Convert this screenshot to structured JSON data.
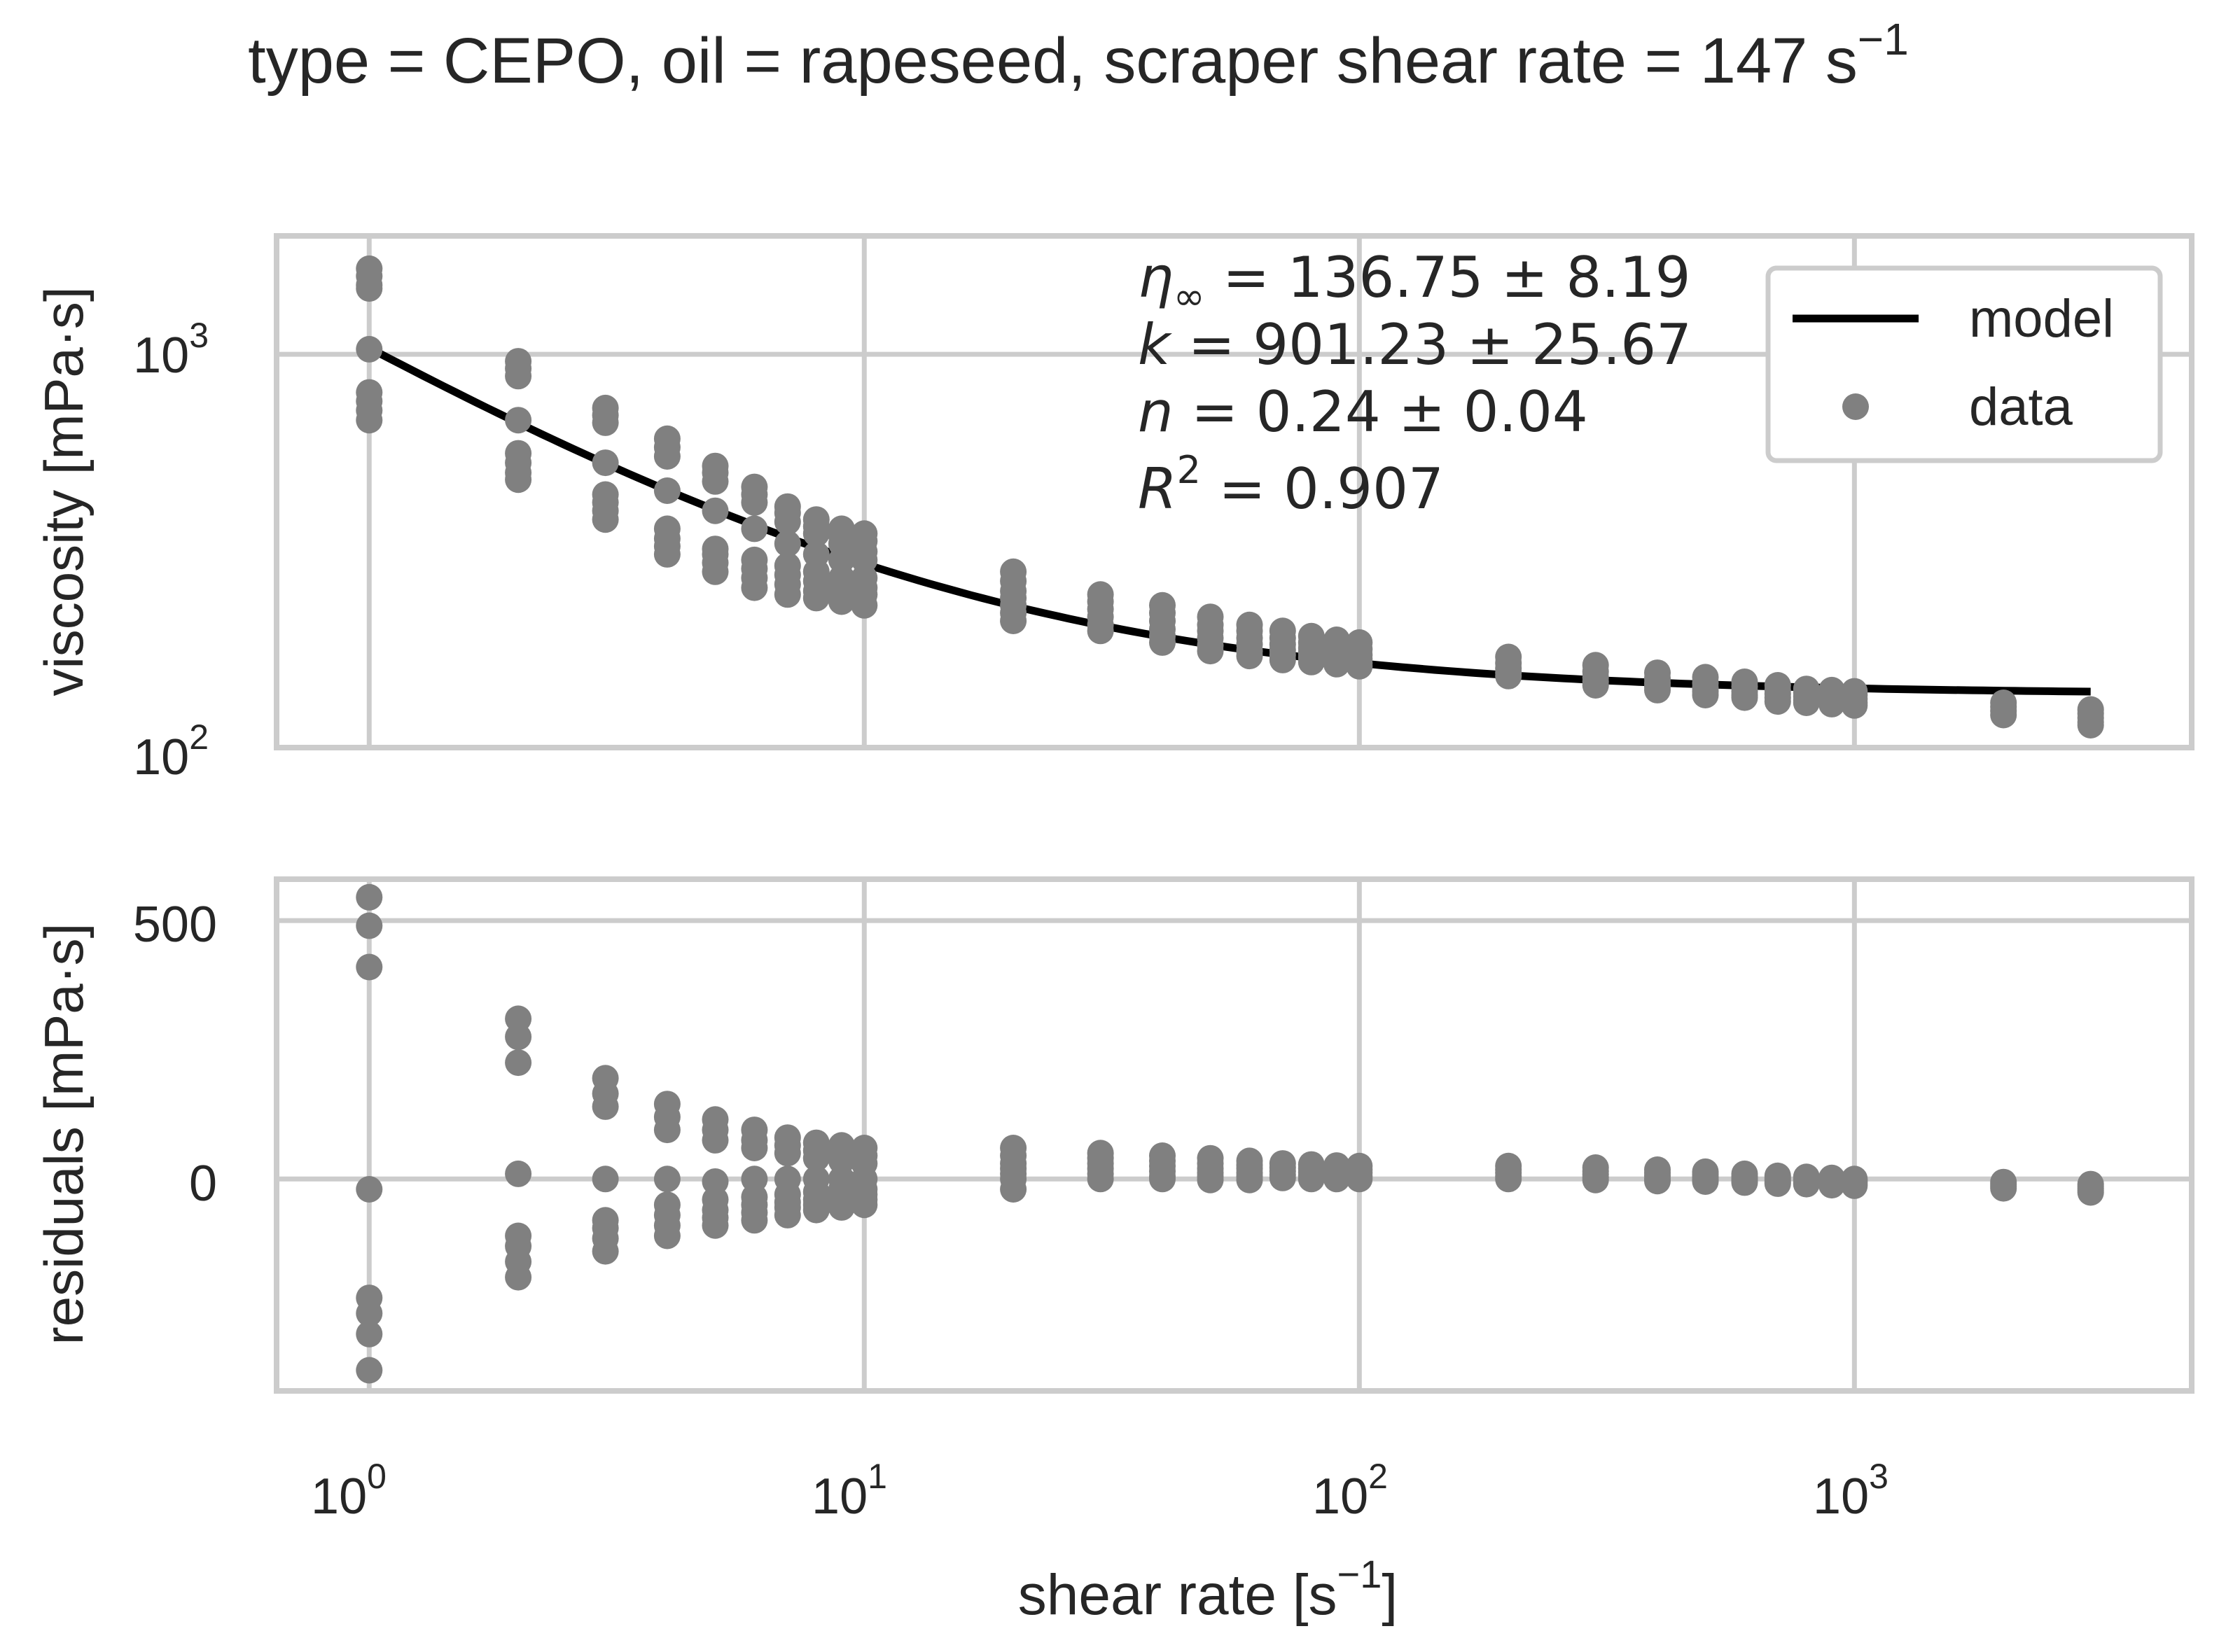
{
  "chart_data": {
    "type": "scatter",
    "title": {
      "main": "type = CEPO, oil = rapeseed, scraper shear rate = 147 s",
      "sup": "−1"
    },
    "colors": {
      "data": "#808080",
      "model": "#000000",
      "grid": "#cccccc",
      "frame": "#cccccc",
      "text": "#262626"
    },
    "xaxis": {
      "label": {
        "main": "shear rate [s",
        "sup": "−1",
        "tail": "]"
      },
      "scale": "log",
      "range": [
        0.65,
        4800
      ],
      "ticks": [
        {
          "value": 1,
          "base": "10",
          "exp": "0"
        },
        {
          "value": 10,
          "base": "10",
          "exp": "1"
        },
        {
          "value": 100,
          "base": "10",
          "exp": "2"
        },
        {
          "value": 1000,
          "base": "10",
          "exp": "3"
        }
      ]
    },
    "viscosity_panel": {
      "ylabel": "viscosity [mPa·s]",
      "yscale": "log",
      "ylim": [
        100,
        2000
      ],
      "yticks": [
        {
          "value": 100,
          "base": "10",
          "exp": "2"
        },
        {
          "value": 1000,
          "base": "10",
          "exp": "3"
        }
      ],
      "legend": {
        "position": "top-right",
        "model_label": "model",
        "data_label": "data"
      },
      "annotation": {
        "line1": {
          "lead": "η",
          "sub": "∞",
          "tail": " = 136.75 ± 8.19"
        },
        "line2": {
          "lead": "k",
          "tail": " = 901.23 ± 25.67"
        },
        "line3": {
          "lead": "n",
          "tail": " = 0.24 ± 0.04"
        },
        "line4": {
          "lead": "R",
          "sup": "2",
          "tail": " = 0.907"
        }
      },
      "model": {
        "eta_inf": 136.75,
        "k": 901.23,
        "n": 0.24,
        "x_range": [
          1,
          3000
        ]
      },
      "data": [
        {
          "x": 1,
          "y": [
            1650,
            1580,
            1500,
            1470,
            1030,
            800,
            760,
            720,
            680
          ]
        },
        {
          "x": 2,
          "y": [
            960,
            920,
            880,
            680,
            560,
            530,
            500,
            480
          ]
        },
        {
          "x": 3,
          "y": [
            730,
            700,
            670,
            530,
            440,
            420,
            400,
            380
          ]
        },
        {
          "x": 4,
          "y": [
            610,
            580,
            550,
            450,
            360,
            340,
            325,
            310
          ]
        },
        {
          "x": 5,
          "y": [
            520,
            500,
            475,
            400,
            320,
            310,
            295,
            280
          ]
        },
        {
          "x": 6,
          "y": [
            460,
            440,
            420,
            360,
            300,
            285,
            270,
            255
          ]
        },
        {
          "x": 7,
          "y": [
            410,
            395,
            375,
            330,
            290,
            275,
            260,
            245
          ]
        },
        {
          "x": 8,
          "y": [
            380,
            365,
            350,
            310,
            280,
            265,
            250,
            240
          ]
        },
        {
          "x": 9,
          "y": [
            360,
            345,
            330,
            300,
            270,
            255,
            245,
            235
          ]
        },
        {
          "x": 10,
          "y": [
            350,
            335,
            315,
            300,
            270,
            255,
            245,
            230
          ]
        },
        {
          "x": 20,
          "y": [
            280,
            265,
            250,
            240,
            230,
            220,
            210
          ]
        },
        {
          "x": 30,
          "y": [
            245,
            235,
            225,
            215,
            205,
            198
          ]
        },
        {
          "x": 40,
          "y": [
            230,
            220,
            210,
            200,
            192,
            185
          ]
        },
        {
          "x": 50,
          "y": [
            215,
            205,
            198,
            190,
            182,
            176
          ]
        },
        {
          "x": 60,
          "y": [
            205,
            198,
            190,
            183,
            176,
            171
          ]
        },
        {
          "x": 70,
          "y": [
            198,
            190,
            183,
            177,
            172,
            167
          ]
        },
        {
          "x": 80,
          "y": [
            192,
            185,
            179,
            174,
            169,
            165
          ]
        },
        {
          "x": 90,
          "y": [
            188,
            181,
            175,
            170,
            166,
            163
          ]
        },
        {
          "x": 100,
          "y": [
            185,
            178,
            172,
            168,
            164,
            161
          ]
        },
        {
          "x": 200,
          "y": [
            170,
            164,
            159,
            155,
            152
          ]
        },
        {
          "x": 300,
          "y": [
            162,
            156,
            151,
            147,
            144
          ]
        },
        {
          "x": 400,
          "y": [
            155,
            150,
            146,
            143,
            140
          ]
        },
        {
          "x": 500,
          "y": [
            151,
            146,
            142,
            139,
            136
          ]
        },
        {
          "x": 600,
          "y": [
            147,
            143,
            139,
            136,
            134
          ]
        },
        {
          "x": 700,
          "y": [
            144,
            140,
            137,
            134,
            131
          ]
        },
        {
          "x": 800,
          "y": [
            141,
            138,
            135,
            132,
            130
          ]
        },
        {
          "x": 900,
          "y": [
            140,
            137,
            134,
            131,
            129
          ]
        },
        {
          "x": 1000,
          "y": [
            139,
            136,
            133,
            130,
            128
          ]
        },
        {
          "x": 2000,
          "y": [
            130,
            127,
            124,
            121
          ]
        },
        {
          "x": 3000,
          "y": [
            125,
            122,
            119,
            116,
            114
          ]
        }
      ]
    },
    "residuals_panel": {
      "ylabel": "residuals [mPa·s]",
      "yscale": "linear",
      "ylim": [
        -410,
        580
      ],
      "yticks": [
        {
          "value": 0,
          "label": "0"
        },
        {
          "value": 500,
          "label": "500"
        }
      ],
      "data": [
        {
          "x": 1,
          "y": [
            545,
            490,
            410,
            -20,
            -230,
            -260,
            -300,
            -370
          ]
        },
        {
          "x": 2,
          "y": [
            310,
            275,
            225,
            10,
            -110,
            -130,
            -160,
            -190
          ]
        },
        {
          "x": 3,
          "y": [
            195,
            165,
            140,
            0,
            -80,
            -95,
            -115,
            -140
          ]
        },
        {
          "x": 4,
          "y": [
            145,
            120,
            95,
            0,
            -50,
            -70,
            -90,
            -110
          ]
        },
        {
          "x": 5,
          "y": [
            115,
            95,
            75,
            -5,
            -40,
            -60,
            -75,
            -90
          ]
        },
        {
          "x": 6,
          "y": [
            95,
            75,
            60,
            0,
            -35,
            -50,
            -65,
            -80
          ]
        },
        {
          "x": 7,
          "y": [
            80,
            65,
            50,
            0,
            -30,
            -45,
            -55,
            -70
          ]
        },
        {
          "x": 8,
          "y": [
            70,
            55,
            40,
            0,
            -25,
            -40,
            -50,
            -60
          ]
        },
        {
          "x": 9,
          "y": [
            65,
            50,
            35,
            0,
            -20,
            -35,
            -45,
            -55
          ]
        },
        {
          "x": 10,
          "y": [
            60,
            45,
            30,
            0,
            -20,
            -30,
            -40,
            -50
          ]
        },
        {
          "x": 20,
          "y": [
            60,
            45,
            30,
            20,
            10,
            0,
            -20
          ]
        },
        {
          "x": 30,
          "y": [
            50,
            40,
            30,
            20,
            10,
            0
          ]
        },
        {
          "x": 40,
          "y": [
            45,
            35,
            25,
            15,
            5,
            0
          ]
        },
        {
          "x": 50,
          "y": [
            40,
            30,
            20,
            12,
            5,
            -2
          ]
        },
        {
          "x": 60,
          "y": [
            35,
            27,
            20,
            12,
            5,
            -2
          ]
        },
        {
          "x": 70,
          "y": [
            30,
            22,
            15,
            8,
            2
          ]
        },
        {
          "x": 80,
          "y": [
            28,
            20,
            13,
            6,
            0
          ]
        },
        {
          "x": 90,
          "y": [
            26,
            18,
            12,
            5,
            0
          ]
        },
        {
          "x": 100,
          "y": [
            25,
            18,
            12,
            5,
            0
          ]
        },
        {
          "x": 200,
          "y": [
            25,
            18,
            12,
            5,
            0
          ]
        },
        {
          "x": 300,
          "y": [
            22,
            15,
            9,
            3,
            -2
          ]
        },
        {
          "x": 400,
          "y": [
            18,
            12,
            6,
            0,
            -4
          ]
        },
        {
          "x": 500,
          "y": [
            14,
            9,
            4,
            -1,
            -5
          ]
        },
        {
          "x": 600,
          "y": [
            10,
            5,
            1,
            -3,
            -7
          ]
        },
        {
          "x": 700,
          "y": [
            6,
            2,
            -2,
            -6,
            -9
          ]
        },
        {
          "x": 800,
          "y": [
            4,
            0,
            -3,
            -7,
            -10
          ]
        },
        {
          "x": 900,
          "y": [
            2,
            -2,
            -5,
            -9,
            -12
          ]
        },
        {
          "x": 1000,
          "y": [
            0,
            -3,
            -6,
            -10,
            -13
          ]
        },
        {
          "x": 2000,
          "y": [
            -6,
            -10,
            -14,
            -18
          ]
        },
        {
          "x": 3000,
          "y": [
            -10,
            -14,
            -18,
            -22,
            -26
          ]
        }
      ]
    }
  }
}
